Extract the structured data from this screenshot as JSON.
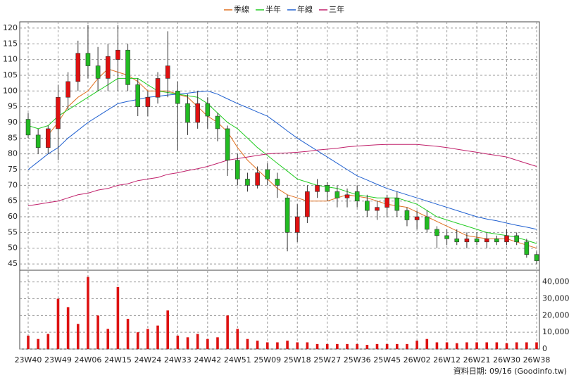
{
  "chart_data": {
    "type": "candlestick",
    "legend": [
      "季線",
      "半年",
      "年線",
      "三年"
    ],
    "source": "資料日期: 09/16 (Goodinfo.tw)",
    "categories": [
      "23W40",
      null,
      null,
      "23W49",
      null,
      null,
      "24W06",
      null,
      null,
      "24W15",
      null,
      null,
      "24W24",
      null,
      null,
      "24W33",
      null,
      null,
      "24W42",
      null,
      null,
      "24W51",
      null,
      null,
      "25W09",
      null,
      null,
      "25W18",
      null,
      null,
      "25W27",
      null,
      null,
      "25W36",
      null,
      null,
      "25W45",
      null,
      null,
      "26W02",
      null,
      null,
      "26W12",
      null,
      null,
      "26W21",
      null,
      null,
      "26W30",
      null,
      null,
      "26W38"
    ],
    "open": [
      91,
      86,
      82,
      88,
      98,
      103,
      112,
      108,
      104,
      110,
      113,
      102,
      95,
      98,
      104,
      100,
      96,
      90,
      96,
      92,
      88,
      78,
      72,
      70,
      75,
      72,
      66,
      55,
      60,
      68,
      70,
      68,
      66,
      68,
      65,
      62,
      63,
      66,
      62,
      59,
      60,
      56,
      54,
      53,
      52,
      53,
      52,
      53,
      52,
      54,
      52,
      48
    ],
    "high": [
      93,
      88,
      89,
      102,
      106,
      116,
      121,
      114,
      115,
      121,
      115,
      104,
      100,
      106,
      119,
      103,
      99,
      100,
      98,
      93,
      89,
      80,
      74,
      76,
      77,
      74,
      67,
      64,
      70,
      72,
      71,
      70,
      69,
      70,
      67,
      65,
      67,
      68,
      63,
      62,
      62,
      57,
      56,
      56,
      55,
      55,
      55,
      54,
      56,
      55,
      53,
      49
    ],
    "low": [
      85,
      80,
      80,
      78,
      94,
      100,
      104,
      100,
      100,
      100,
      100,
      92,
      92,
      96,
      98,
      81,
      86,
      88,
      88,
      84,
      73,
      70,
      68,
      69,
      70,
      66,
      49,
      52,
      58,
      66,
      65,
      63,
      63,
      63,
      60,
      59,
      60,
      60,
      57,
      56,
      55,
      50,
      51,
      51,
      50,
      51,
      50,
      51,
      51,
      51,
      47,
      45
    ],
    "close": [
      86,
      82,
      88,
      98,
      103,
      112,
      108,
      104,
      111,
      113,
      102,
      95,
      98,
      104,
      108,
      96,
      90,
      96,
      92,
      88,
      78,
      72,
      70,
      74,
      72,
      70,
      55,
      60,
      68,
      70,
      68,
      66,
      67,
      65,
      62,
      63,
      66,
      62,
      59,
      60,
      56,
      54,
      53,
      52,
      53,
      52,
      53,
      52,
      54,
      52,
      48,
      46
    ],
    "up_color": "#e01010",
    "down_color": "#22bb22",
    "volume": [
      8000,
      6000,
      9000,
      30000,
      25000,
      15000,
      43000,
      20000,
      12000,
      37000,
      18000,
      10000,
      12000,
      14000,
      23000,
      8000,
      7000,
      9000,
      6000,
      7000,
      20000,
      12000,
      6000,
      5000,
      4000,
      4000,
      5000,
      4000,
      4000,
      3000,
      3000,
      3000,
      3000,
      3000,
      2500,
      3000,
      3000,
      3000,
      3000,
      5000,
      6000,
      4000,
      4000,
      3500,
      4000,
      4000,
      4000,
      4000,
      3500,
      4000,
      4000,
      4000
    ],
    "volume_color": "#dd1111",
    "series": [
      {
        "name": "季線",
        "color": "#e07020",
        "values": [
          null,
          null,
          86,
          90,
          95,
          98,
          100,
          104,
          107,
          106,
          105,
          103,
          100,
          100,
          100,
          99,
          98,
          95,
          92,
          90,
          87,
          82,
          78,
          75,
          72,
          69,
          67,
          66,
          65,
          65,
          65,
          66,
          67,
          66.5,
          66,
          65,
          64,
          63.5,
          63,
          61.5,
          60,
          58.5,
          57,
          55.5,
          54,
          53.5,
          53,
          53,
          53,
          52,
          51,
          50
        ]
      },
      {
        "name": "半年",
        "color": "#22cc22",
        "values": [
          89,
          88,
          89,
          92,
          94,
          96,
          98,
          100,
          102,
          104,
          104,
          104,
          102,
          100,
          99.5,
          99,
          98.5,
          98,
          96,
          93,
          90,
          88,
          85,
          82,
          79.5,
          77,
          74.5,
          72,
          71,
          70,
          69.5,
          69,
          68,
          67,
          66.5,
          66,
          66,
          66,
          65,
          64,
          62,
          60,
          59,
          58,
          57,
          56,
          55,
          54.5,
          54,
          53.5,
          52.5,
          51.5
        ]
      },
      {
        "name": "年線",
        "color": "#2060d0",
        "values": [
          75,
          77.5,
          80,
          82,
          85,
          87.5,
          90,
          92,
          94,
          96,
          96.7,
          97.3,
          98,
          98.3,
          98.7,
          99,
          99.3,
          99.7,
          100,
          99,
          97.5,
          96,
          94.7,
          93.3,
          92,
          89.7,
          87.3,
          85,
          83,
          81,
          79,
          77,
          75,
          73,
          71.7,
          70.3,
          69,
          68,
          67,
          66,
          65,
          64,
          63,
          62,
          61,
          60,
          59.3,
          58.7,
          58,
          57.3,
          56.7,
          56
        ]
      },
      {
        "name": "三年",
        "color": "#c0206a",
        "values": [
          63.5,
          64,
          64.5,
          65,
          66,
          67,
          67.5,
          68.5,
          69,
          70,
          70.5,
          71.5,
          72,
          72.5,
          73.5,
          74,
          74.7,
          75.3,
          76,
          77,
          78,
          78.5,
          79,
          79.5,
          80,
          80.2,
          80.3,
          80.5,
          80.8,
          81.2,
          81.5,
          81.8,
          82.2,
          82.5,
          82.7,
          82.9,
          83,
          83,
          83,
          83,
          82.7,
          82.4,
          82,
          81.5,
          81,
          80.5,
          80,
          79.5,
          79,
          78,
          77,
          76
        ]
      }
    ],
    "ylim": [
      43,
      122
    ],
    "yticks": [
      45,
      50,
      55,
      60,
      65,
      70,
      75,
      80,
      85,
      90,
      95,
      100,
      105,
      110,
      115,
      120
    ],
    "y2lim": [
      0,
      47000
    ],
    "y2ticks": [
      0,
      {
        "value": 10000,
        "label": "10,000"
      },
      {
        "value": 20000,
        "label": "20,000"
      },
      {
        "value": 30000,
        "label": "30,000"
      },
      {
        "value": 40000,
        "label": "40,000"
      }
    ],
    "grid": true
  }
}
